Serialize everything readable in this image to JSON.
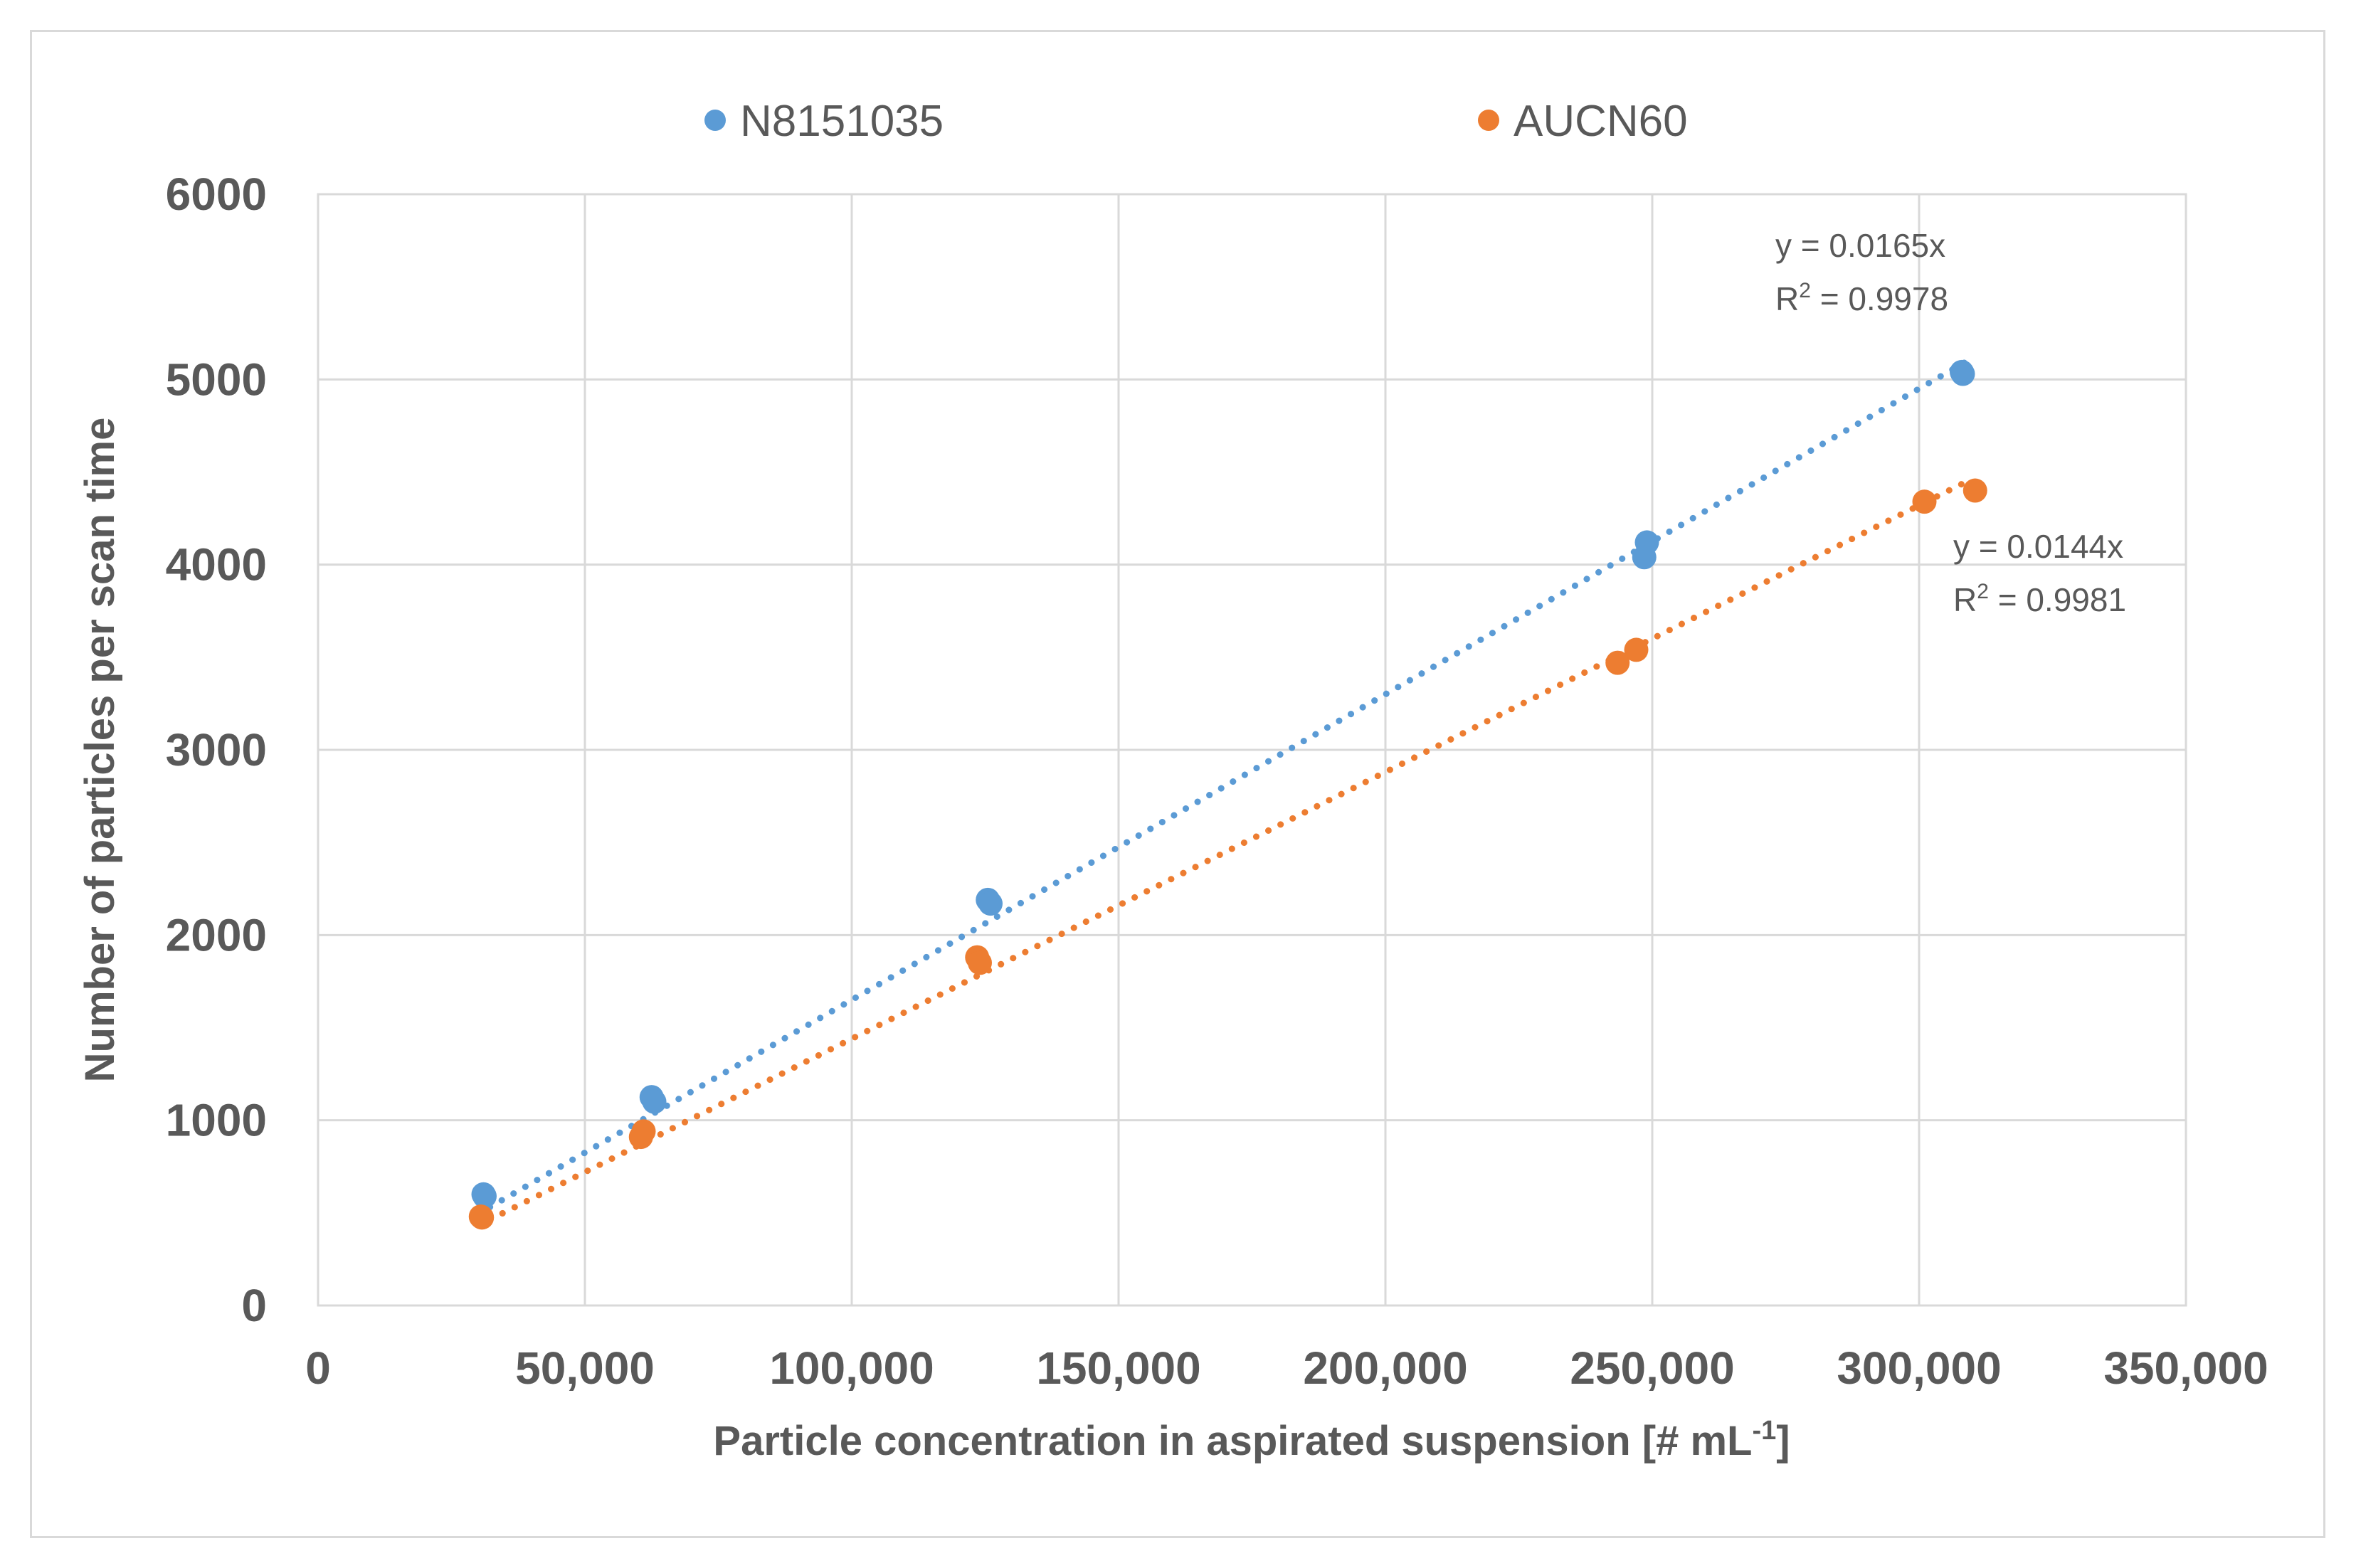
{
  "chart_data": {
    "type": "scatter",
    "title": "",
    "xlabel": "Particle concentration in aspirated suspension [# mL",
    "xlabel_sup": "-1",
    "xlabel_end": "]",
    "ylabel": "Number of particles per scan time",
    "xlim": [
      0,
      350000
    ],
    "ylim": [
      0,
      6000
    ],
    "xticks": [
      0,
      50000,
      100000,
      150000,
      200000,
      250000,
      300000,
      350000
    ],
    "xtick_labels": [
      "0",
      "50,000",
      "100,000",
      "150,000",
      "200,000",
      "250,000",
      "300,000",
      "350,000"
    ],
    "yticks": [
      0,
      1000,
      2000,
      3000,
      4000,
      5000,
      6000
    ],
    "ytick_labels": [
      "0",
      "1000",
      "2000",
      "3000",
      "4000",
      "5000",
      "6000"
    ],
    "grid": true,
    "legend_position": "top",
    "series": [
      {
        "name": "N8151035",
        "color": "#5b9bd5",
        "points": [
          {
            "x": 31000,
            "y": 600
          },
          {
            "x": 31200,
            "y": 590
          },
          {
            "x": 62500,
            "y": 1125
          },
          {
            "x": 63000,
            "y": 1100
          },
          {
            "x": 125500,
            "y": 2190
          },
          {
            "x": 126000,
            "y": 2170
          },
          {
            "x": 249000,
            "y": 4120
          },
          {
            "x": 248500,
            "y": 4040
          },
          {
            "x": 308000,
            "y": 5040
          },
          {
            "x": 308200,
            "y": 5030
          }
        ],
        "trendline": {
          "slope": 0.0165,
          "x_range": [
            30000,
            308500
          ],
          "style": "dotted"
        },
        "equation": "y = 0.0165x",
        "r2_prefix": "R",
        "r2_sup": "2",
        "r2_suffix": " = 0.9978"
      },
      {
        "name": "AUCN60",
        "color": "#ed7d31",
        "points": [
          {
            "x": 30500,
            "y": 480
          },
          {
            "x": 30700,
            "y": 475
          },
          {
            "x": 60500,
            "y": 910
          },
          {
            "x": 61000,
            "y": 940
          },
          {
            "x": 123500,
            "y": 1880
          },
          {
            "x": 124000,
            "y": 1850
          },
          {
            "x": 243500,
            "y": 3470
          },
          {
            "x": 247000,
            "y": 3540
          },
          {
            "x": 301000,
            "y": 4340
          },
          {
            "x": 310500,
            "y": 4400
          }
        ],
        "trendline": {
          "slope": 0.0144,
          "x_range": [
            30000,
            310000
          ],
          "style": "dotted"
        },
        "equation": "y = 0.0144x",
        "r2_prefix": "R",
        "r2_sup": "2",
        "r2_suffix": " = 0.9981"
      }
    ]
  }
}
